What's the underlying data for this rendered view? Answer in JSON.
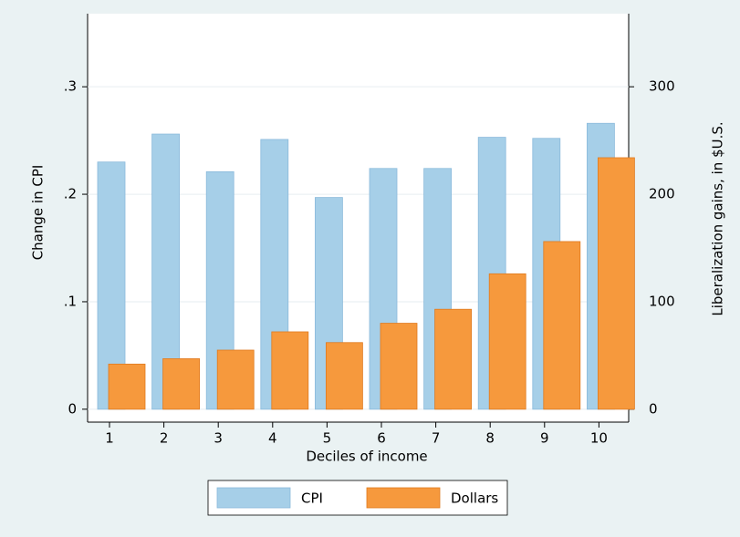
{
  "chart_data": {
    "type": "bar",
    "x_label": "Deciles of income",
    "y_label": "Change in CPI",
    "y2_label": "Liberalization gains, in $U.S.",
    "categories": [
      "1",
      "2",
      "3",
      "4",
      "5",
      "6",
      "7",
      "8",
      "9",
      "10"
    ],
    "series": [
      {
        "name": "CPI",
        "color": "#a6cfe8",
        "values": [
          0.23,
          0.256,
          0.221,
          0.251,
          0.197,
          0.224,
          0.224,
          0.253,
          0.252,
          0.266
        ]
      },
      {
        "name": "Dollars",
        "color": "#f6993d",
        "axis": "y2",
        "values": [
          42,
          47,
          55,
          72,
          62,
          80,
          93,
          126,
          156,
          234
        ]
      }
    ],
    "ylim": [
      -0.012,
      0.368
    ],
    "yticks": [
      0,
      {
        "value": 0.1,
        "label": ".1"
      },
      {
        "value": 0.2,
        "label": ".2"
      },
      {
        "value": 0.3,
        "label": ".3"
      }
    ],
    "y2lim": [
      -12,
      368
    ],
    "y2ticks": [
      0,
      100,
      200,
      300
    ],
    "grid": true,
    "legend": "bottom"
  }
}
